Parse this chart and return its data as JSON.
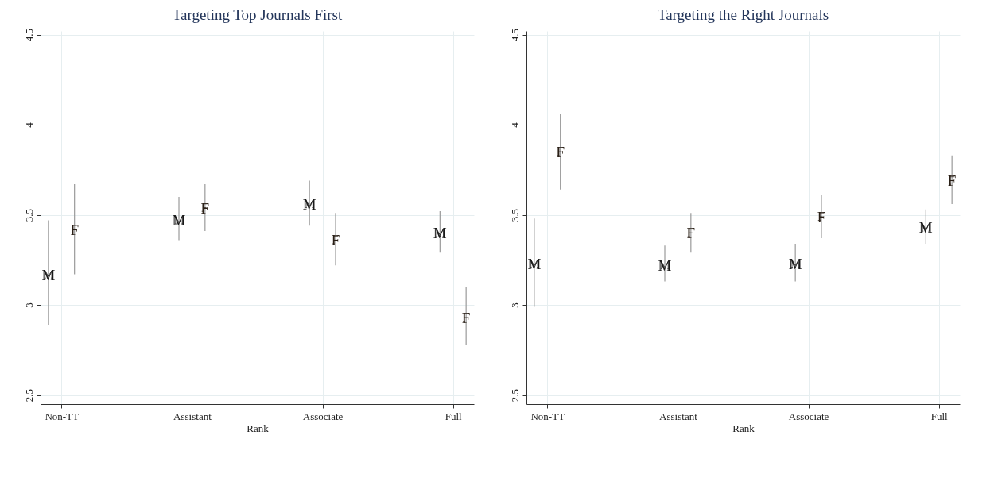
{
  "chart_data": [
    {
      "type": "scatter",
      "title": "Targeting Top Journals First",
      "xlabel": "Rank",
      "categories": [
        null,
        "Non-TT",
        null,
        null,
        null,
        null,
        null,
        null,
        null,
        null,
        null,
        "Assistant",
        null,
        null,
        null,
        null,
        null,
        null,
        null,
        null,
        null,
        "Associate",
        null,
        null,
        null,
        null,
        null,
        null,
        null,
        null,
        null,
        "Full",
        null
      ],
      "ylim": [
        2.45,
        4.52
      ],
      "yticks": [
        2.5,
        3,
        3.5,
        4,
        4.5
      ],
      "grid": true,
      "series": [
        {
          "name": "M",
          "color": "#1a1a1a",
          "values": [
            3.17,
            null,
            null,
            null,
            null,
            null,
            null,
            null,
            null,
            null,
            3.47,
            null,
            null,
            null,
            null,
            null,
            null,
            null,
            null,
            null,
            3.56,
            null,
            null,
            null,
            null,
            null,
            null,
            null,
            null,
            null,
            3.4,
            null,
            null
          ],
          "errors": [
            [
              2.89,
              3.47
            ],
            null,
            null,
            null,
            null,
            null,
            null,
            null,
            null,
            null,
            [
              3.36,
              3.6
            ],
            null,
            null,
            null,
            null,
            null,
            null,
            null,
            null,
            null,
            [
              3.44,
              3.69
            ],
            null,
            null,
            null,
            null,
            null,
            null,
            null,
            null,
            null,
            [
              3.29,
              3.52
            ],
            null,
            null
          ]
        },
        {
          "name": "F",
          "color": "#2b2118",
          "values": [
            null,
            null,
            3.42,
            null,
            null,
            null,
            null,
            null,
            null,
            null,
            null,
            null,
            3.54,
            null,
            null,
            null,
            null,
            null,
            null,
            null,
            null,
            null,
            3.36,
            null,
            null,
            null,
            null,
            null,
            null,
            null,
            null,
            null,
            2.93
          ],
          "errors": [
            null,
            null,
            [
              3.17,
              3.67
            ],
            null,
            null,
            null,
            null,
            null,
            null,
            null,
            null,
            null,
            [
              3.41,
              3.67
            ],
            null,
            null,
            null,
            null,
            null,
            null,
            null,
            null,
            null,
            [
              3.22,
              3.51
            ],
            null,
            null,
            null,
            null,
            null,
            null,
            null,
            null,
            null,
            [
              2.78,
              3.1
            ]
          ]
        }
      ]
    },
    {
      "type": "scatter",
      "title": "Targeting the Right Journals",
      "xlabel": "Rank",
      "categories": [
        null,
        "Non-TT",
        null,
        null,
        null,
        null,
        null,
        null,
        null,
        null,
        null,
        "Assistant",
        null,
        null,
        null,
        null,
        null,
        null,
        null,
        null,
        null,
        "Associate",
        null,
        null,
        null,
        null,
        null,
        null,
        null,
        null,
        null,
        "Full",
        null
      ],
      "ylim": [
        2.45,
        4.52
      ],
      "yticks": [
        2.5,
        3,
        3.5,
        4,
        4.5
      ],
      "grid": true,
      "series": [
        {
          "name": "M",
          "color": "#1a1a1a",
          "values": [
            3.23,
            null,
            null,
            null,
            null,
            null,
            null,
            null,
            null,
            null,
            3.22,
            null,
            null,
            null,
            null,
            null,
            null,
            null,
            null,
            null,
            3.23,
            null,
            null,
            null,
            null,
            null,
            null,
            null,
            null,
            null,
            3.43,
            null,
            null
          ],
          "errors": [
            [
              2.99,
              3.48
            ],
            null,
            null,
            null,
            null,
            null,
            null,
            null,
            null,
            null,
            [
              3.13,
              3.33
            ],
            null,
            null,
            null,
            null,
            null,
            null,
            null,
            null,
            null,
            [
              3.13,
              3.34
            ],
            null,
            null,
            null,
            null,
            null,
            null,
            null,
            null,
            null,
            [
              3.34,
              3.53
            ],
            null,
            null
          ]
        },
        {
          "name": "F",
          "color": "#2b2118",
          "values": [
            null,
            null,
            3.85,
            null,
            null,
            null,
            null,
            null,
            null,
            null,
            null,
            null,
            3.4,
            null,
            null,
            null,
            null,
            null,
            null,
            null,
            null,
            null,
            3.49,
            null,
            null,
            null,
            null,
            null,
            null,
            null,
            null,
            null,
            3.69
          ],
          "errors": [
            null,
            null,
            [
              3.64,
              4.06
            ],
            null,
            null,
            null,
            null,
            null,
            null,
            null,
            null,
            null,
            [
              3.29,
              3.51
            ],
            null,
            null,
            null,
            null,
            null,
            null,
            null,
            null,
            null,
            [
              3.37,
              3.61
            ],
            null,
            null,
            null,
            null,
            null,
            null,
            null,
            null,
            null,
            [
              3.56,
              3.83
            ]
          ]
        }
      ]
    }
  ]
}
